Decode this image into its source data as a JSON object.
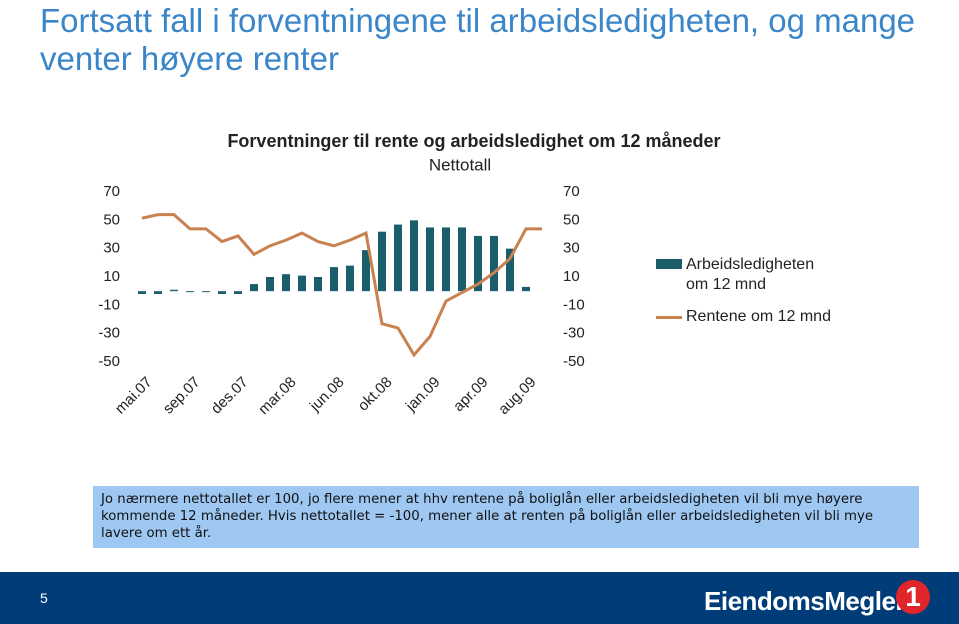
{
  "slide_title": "Fortsatt fall i forventningene til arbeidsledigheten, og mange venter høyere renter",
  "chart_data": {
    "type": "bar_line",
    "title": "Forventninger til rente og arbeidsledighet om 12 måneder",
    "subtitle": "Nettotall",
    "categories": [
      "mai.07",
      null,
      null,
      "sep.07",
      null,
      null,
      "des.07",
      null,
      null,
      "mar.08",
      null,
      null,
      "jun.08",
      null,
      null,
      "okt.08",
      null,
      null,
      "jan.09",
      null,
      null,
      "apr.09",
      null,
      null,
      "aug.09",
      null
    ],
    "series": [
      {
        "name": "Arbeidsledigheten om 12 mnd",
        "type": "bar",
        "color": "#1b5e6b",
        "values": [
          -2,
          -2,
          1,
          0,
          0,
          -2,
          -2,
          5,
          10,
          12,
          11,
          10,
          17,
          18,
          29,
          42,
          47,
          50,
          45,
          45,
          45,
          39,
          39,
          30,
          3,
          null
        ]
      },
      {
        "name": "Rentene om 12 mnd",
        "type": "line",
        "color": "#c8814f",
        "axis": "y2",
        "values": [
          51.5,
          54,
          54,
          44,
          44,
          35,
          39,
          26,
          32,
          36,
          41,
          35,
          32,
          36,
          41,
          -23,
          -26,
          -45,
          -32,
          -7,
          -1,
          5,
          13,
          23,
          44,
          44
        ]
      }
    ],
    "ylim": [
      -50,
      70
    ],
    "yticks": [
      -50,
      -30,
      -10,
      10,
      30,
      50,
      70
    ],
    "y2lim": [
      -50,
      70
    ],
    "y2ticks": [
      -50,
      -30,
      -10,
      10,
      30,
      50,
      70
    ],
    "grid": false,
    "legend": "right"
  },
  "note": "Jo nærmere nettotallet er 100, jo flere mener at hhv rentene på boliglån eller arbeidsledigheten vil bli mye høyere kommende 12 måneder. Hvis nettotallet = -100, mener alle at renten på boliglån eller arbeidsledigheten vil bli mye lavere om ett år.",
  "footer": {
    "page_number": "5",
    "logo": "EiendomsMegler",
    "logo_mark": "1"
  }
}
